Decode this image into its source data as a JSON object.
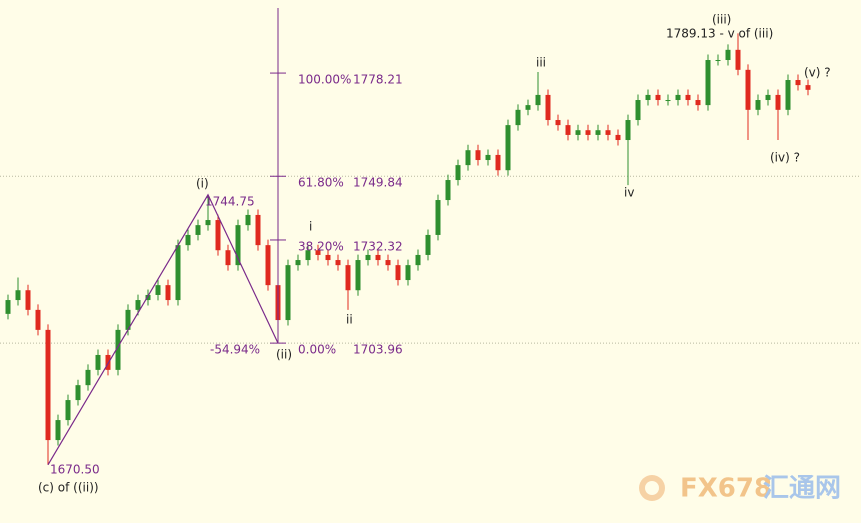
{
  "chart_data": {
    "type": "candlestick",
    "up_color": "#2f8f2f",
    "down_color": "#e02a1f",
    "wave_color": "#7a2a8a",
    "background": "#fffde8",
    "ylim": [
      1654.5,
      1798.3
    ],
    "open": [
      1712.0,
      1715.8,
      1718.5,
      1713.1,
      1707.6,
      1677.3,
      1682.8,
      1688.3,
      1692.4,
      1696.6,
      1700.7,
      1696.6,
      1707.6,
      1713.1,
      1715.8,
      1717.2,
      1719.9,
      1715.8,
      1730.9,
      1733.7,
      1736.4,
      1737.8,
      1729.5,
      1725.4,
      1736.4,
      1739.2,
      1730.9,
      1719.9,
      1710.3,
      1725.4,
      1726.8,
      1729.5,
      1728.2,
      1726.8,
      1725.4,
      1718.5,
      1726.8,
      1728.2,
      1726.8,
      1725.4,
      1721.3,
      1725.4,
      1728.2,
      1733.7,
      1743.3,
      1748.8,
      1752.9,
      1757.0,
      1754.3,
      1755.7,
      1751.5,
      1763.9,
      1768.1,
      1769.4,
      1772.2,
      1765.3,
      1763.9,
      1761.2,
      1762.5,
      1761.2,
      1762.5,
      1761.2,
      1759.8,
      1765.3,
      1770.8,
      1772.2,
      1770.8,
      1770.8,
      1772.2,
      1770.8,
      1769.4,
      1781.8,
      1781.8,
      1784.6,
      1779.1,
      1768.1,
      1770.8,
      1772.2,
      1768.1,
      1776.3,
      1774.9
    ],
    "high": [
      1717.3,
      1722.0,
      1720.0,
      1714.6,
      1709.1,
      1684.3,
      1689.8,
      1693.9,
      1698.1,
      1702.2,
      1702.2,
      1709.1,
      1714.6,
      1717.3,
      1718.7,
      1721.4,
      1721.4,
      1732.4,
      1735.2,
      1737.9,
      1744.75,
      1739.3,
      1731.0,
      1737.9,
      1740.7,
      1740.7,
      1732.4,
      1721.4,
      1726.9,
      1728.3,
      1731.0,
      1731.0,
      1729.7,
      1728.3,
      1726.9,
      1728.3,
      1729.7,
      1729.7,
      1728.3,
      1726.9,
      1726.9,
      1729.7,
      1735.2,
      1744.8,
      1750.3,
      1754.4,
      1758.5,
      1758.5,
      1757.2,
      1757.2,
      1765.4,
      1769.6,
      1770.9,
      1778.5,
      1773.7,
      1766.8,
      1765.4,
      1764.0,
      1764.0,
      1764.0,
      1764.0,
      1762.7,
      1766.8,
      1772.3,
      1773.7,
      1773.7,
      1772.3,
      1773.7,
      1773.7,
      1772.3,
      1783.3,
      1783.3,
      1786.1,
      1789.13,
      1780.6,
      1772.3,
      1773.7,
      1773.7,
      1777.8,
      1777.8,
      1776.4
    ],
    "low": [
      1710.5,
      1714.3,
      1711.6,
      1706.1,
      1670.5,
      1675.8,
      1681.3,
      1686.8,
      1690.9,
      1695.1,
      1695.1,
      1695.1,
      1706.1,
      1711.6,
      1714.3,
      1715.7,
      1714.3,
      1714.3,
      1729.4,
      1732.2,
      1734.9,
      1728.0,
      1723.9,
      1723.9,
      1734.9,
      1729.4,
      1718.4,
      1703.96,
      1708.8,
      1723.9,
      1725.3,
      1726.7,
      1725.3,
      1723.9,
      1713.1,
      1717.0,
      1725.3,
      1725.3,
      1723.9,
      1719.8,
      1719.8,
      1723.9,
      1726.7,
      1732.2,
      1741.8,
      1747.3,
      1751.4,
      1752.8,
      1752.8,
      1750.0,
      1750.0,
      1762.4,
      1766.6,
      1767.9,
      1763.8,
      1762.4,
      1759.7,
      1759.7,
      1759.7,
      1759.7,
      1759.7,
      1758.3,
      1747.4,
      1763.8,
      1769.3,
      1769.3,
      1769.3,
      1769.3,
      1769.3,
      1767.9,
      1767.9,
      1780.3,
      1780.3,
      1777.6,
      1759.8,
      1766.6,
      1769.3,
      1759.8,
      1766.6,
      1773.4,
      1772.1
    ],
    "close": [
      1715.8,
      1718.5,
      1713.1,
      1707.6,
      1677.3,
      1682.8,
      1688.3,
      1692.4,
      1696.6,
      1700.7,
      1696.6,
      1707.6,
      1713.1,
      1715.8,
      1717.2,
      1719.9,
      1715.8,
      1730.9,
      1733.7,
      1736.4,
      1737.8,
      1729.5,
      1725.4,
      1736.4,
      1739.2,
      1730.9,
      1719.9,
      1710.3,
      1725.4,
      1726.8,
      1729.5,
      1728.2,
      1726.8,
      1725.4,
      1718.5,
      1726.8,
      1728.2,
      1726.8,
      1725.4,
      1721.3,
      1725.4,
      1728.2,
      1733.7,
      1743.3,
      1748.8,
      1752.9,
      1757.0,
      1754.3,
      1755.7,
      1751.5,
      1763.9,
      1768.1,
      1769.4,
      1772.2,
      1765.3,
      1763.9,
      1761.2,
      1762.5,
      1761.2,
      1762.5,
      1761.2,
      1759.8,
      1765.3,
      1770.8,
      1772.2,
      1770.8,
      1770.8,
      1772.2,
      1770.8,
      1769.4,
      1781.8,
      1781.8,
      1784.6,
      1779.1,
      1768.1,
      1770.8,
      1772.2,
      1768.1,
      1776.3,
      1774.9,
      1773.6
    ],
    "fibonacci": [
      {
        "label": "100.00%",
        "value": 1778.21
      },
      {
        "label": "61.80%",
        "value": 1749.84,
        "dotted": true
      },
      {
        "label": "38.20%",
        "value": 1732.32
      },
      {
        "label": "0.00%",
        "value": 1703.96,
        "dotted": true
      }
    ],
    "fib_extension_label": "-54.94%",
    "wave_labels": [
      "(c) of ((ii))",
      "1670.50",
      "(i)",
      "1744.75",
      "(ii)",
      "i",
      "ii",
      "iii",
      "iv",
      "(iii)",
      "1789.13 - v of (iii)",
      "(iv) ?",
      "(v) ?"
    ],
    "watermark": [
      "FX678",
      "汇通网"
    ]
  }
}
